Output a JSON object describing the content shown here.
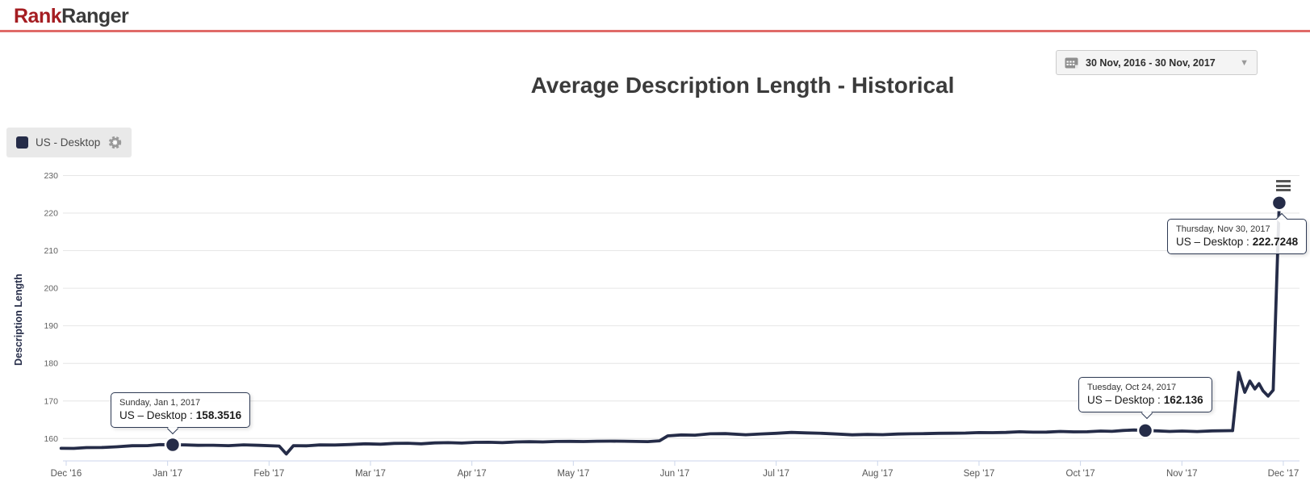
{
  "header": {
    "logo_rank": "Rank",
    "logo_ranger": "Ranger"
  },
  "toolbar": {
    "date_range": "30 Nov, 2016 - 30 Nov, 2017",
    "caret": "▼"
  },
  "page": {
    "title": "Average Description Length - Historical"
  },
  "legend": {
    "label": "US - Desktop",
    "swatch_color": "#252c48",
    "gear_icon": "gear"
  },
  "tooltips": [
    {
      "date": "Sunday, Jan 1, 2017",
      "series_label": "US – Desktop :",
      "value": "158.3516"
    },
    {
      "date": "Tuesday, Oct 24, 2017",
      "series_label": "US – Desktop :",
      "value": "162.136"
    },
    {
      "date": "Thursday, Nov 30, 2017",
      "series_label": "US – Desktop :",
      "value": "222.7248"
    }
  ],
  "colors": {
    "line": "#252c48",
    "logo_red": "#a51d22",
    "header_underline": "#e06a68",
    "gridline": "#e6e6e6",
    "axis_line": "#ccd6eb",
    "tick_label": "#606060"
  },
  "chart_data": {
    "type": "line",
    "title": "Average Description Length - Historical",
    "xlabel": "",
    "ylabel": "Description Length",
    "x_tick_labels": [
      "Dec '16",
      "Jan '17",
      "Feb '17",
      "Mar '17",
      "Apr '17",
      "May '17",
      "Jun '17",
      "Jul '17",
      "Aug '17",
      "Sep '17",
      "Oct '17",
      "Nov '17",
      "Dec '17"
    ],
    "y_ticks": [
      160,
      170,
      180,
      190,
      200,
      210,
      220,
      230
    ],
    "ylim": [
      155,
      232
    ],
    "grid": "horizontal",
    "legend_position": "top-left",
    "x_axis_note": "x in points is month offset from Dec 1 2016 tick",
    "series": [
      {
        "name": "US - Desktop",
        "color": "#252c48",
        "points": [
          [
            -0.05,
            157.4
          ],
          [
            0.2,
            157.6
          ],
          [
            0.5,
            157.8
          ],
          [
            0.8,
            158.1
          ],
          [
            1.05,
            158.3516
          ],
          [
            1.3,
            158.2
          ],
          [
            1.6,
            158.1
          ],
          [
            1.9,
            158.2
          ],
          [
            2.1,
            158.0
          ],
          [
            2.17,
            155.9
          ],
          [
            2.24,
            158.1
          ],
          [
            2.5,
            158.3
          ],
          [
            2.8,
            158.4
          ],
          [
            3.1,
            158.5
          ],
          [
            3.5,
            158.6
          ],
          [
            3.9,
            158.8
          ],
          [
            4.3,
            158.9
          ],
          [
            4.7,
            159.1
          ],
          [
            5.1,
            159.2
          ],
          [
            5.5,
            159.3
          ],
          [
            5.85,
            159.4
          ],
          [
            5.93,
            160.7
          ],
          [
            6.2,
            160.9
          ],
          [
            6.5,
            161.3
          ],
          [
            6.7,
            161.0
          ],
          [
            7.0,
            161.4
          ],
          [
            7.3,
            161.5
          ],
          [
            7.6,
            161.2
          ],
          [
            7.9,
            161.1
          ],
          [
            8.2,
            161.2
          ],
          [
            8.6,
            161.4
          ],
          [
            9.0,
            161.6
          ],
          [
            9.4,
            161.8
          ],
          [
            9.8,
            161.9
          ],
          [
            10.2,
            162.0
          ],
          [
            10.64,
            162.136
          ],
          [
            11.0,
            162.0
          ],
          [
            11.3,
            162.05
          ],
          [
            11.5,
            162.1
          ],
          [
            11.56,
            177.6
          ],
          [
            11.62,
            172.3
          ],
          [
            11.67,
            175.3
          ],
          [
            11.72,
            173.2
          ],
          [
            11.76,
            174.6
          ],
          [
            11.8,
            172.7
          ],
          [
            11.85,
            171.3
          ],
          [
            11.9,
            172.9
          ],
          [
            11.96,
            222.7248
          ]
        ]
      }
    ],
    "markers": [
      {
        "month_x": 1.05,
        "value": 158.3516,
        "label": "Sunday, Jan 1, 2017"
      },
      {
        "month_x": 10.64,
        "value": 162.136,
        "label": "Tuesday, Oct 24, 2017"
      },
      {
        "month_x": 11.96,
        "value": 222.7248,
        "label": "Thursday, Nov 30, 2017"
      }
    ]
  }
}
